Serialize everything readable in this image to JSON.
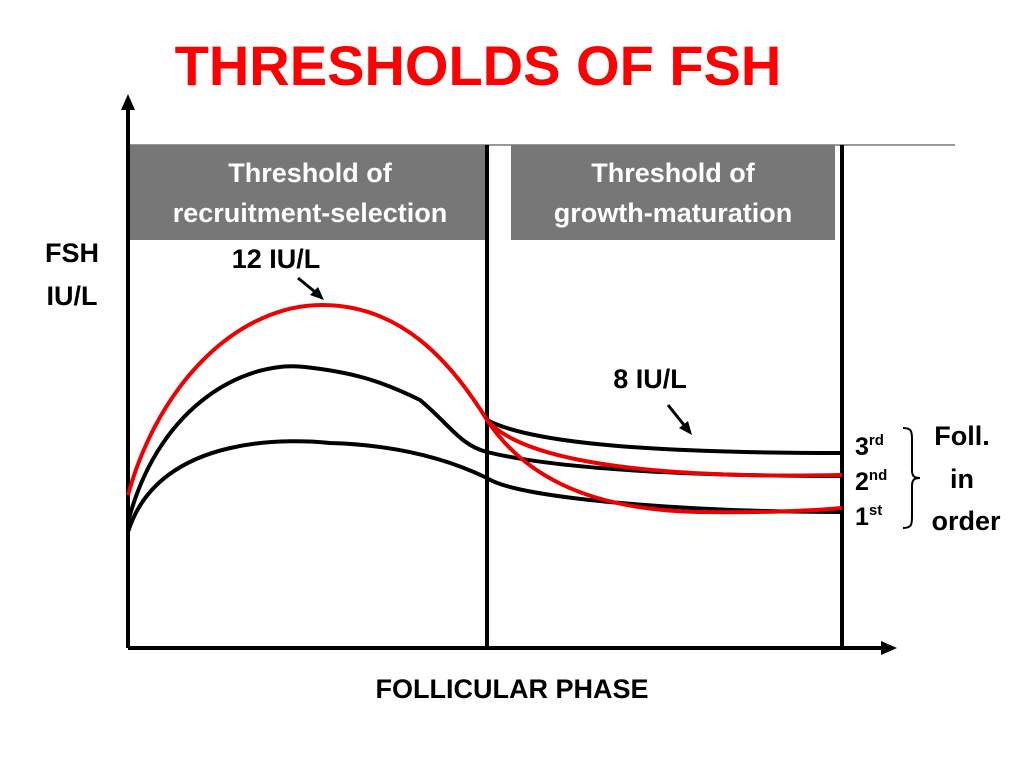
{
  "header": {
    "title": "THRESHOLDS OF FSH"
  },
  "boxes": [
    {
      "lines": [
        "Threshold of",
        "recruitment-selection"
      ]
    },
    {
      "lines": [
        "Threshold of",
        "growth-maturation"
      ]
    }
  ],
  "y_label": {
    "lines": [
      "FSH",
      "IU/L"
    ]
  },
  "x_label": "FOLLICULAR PHASE",
  "annotations": [
    "12 IU/L",
    "8 IU/L"
  ],
  "ranks": [
    {
      "number": "3",
      "suffix": "rd"
    },
    {
      "number": "2",
      "suffix": "nd"
    },
    {
      "number": "1",
      "suffix": "st"
    }
  ],
  "group_label": {
    "lines": [
      "Foll.",
      "in",
      "order"
    ]
  }
}
